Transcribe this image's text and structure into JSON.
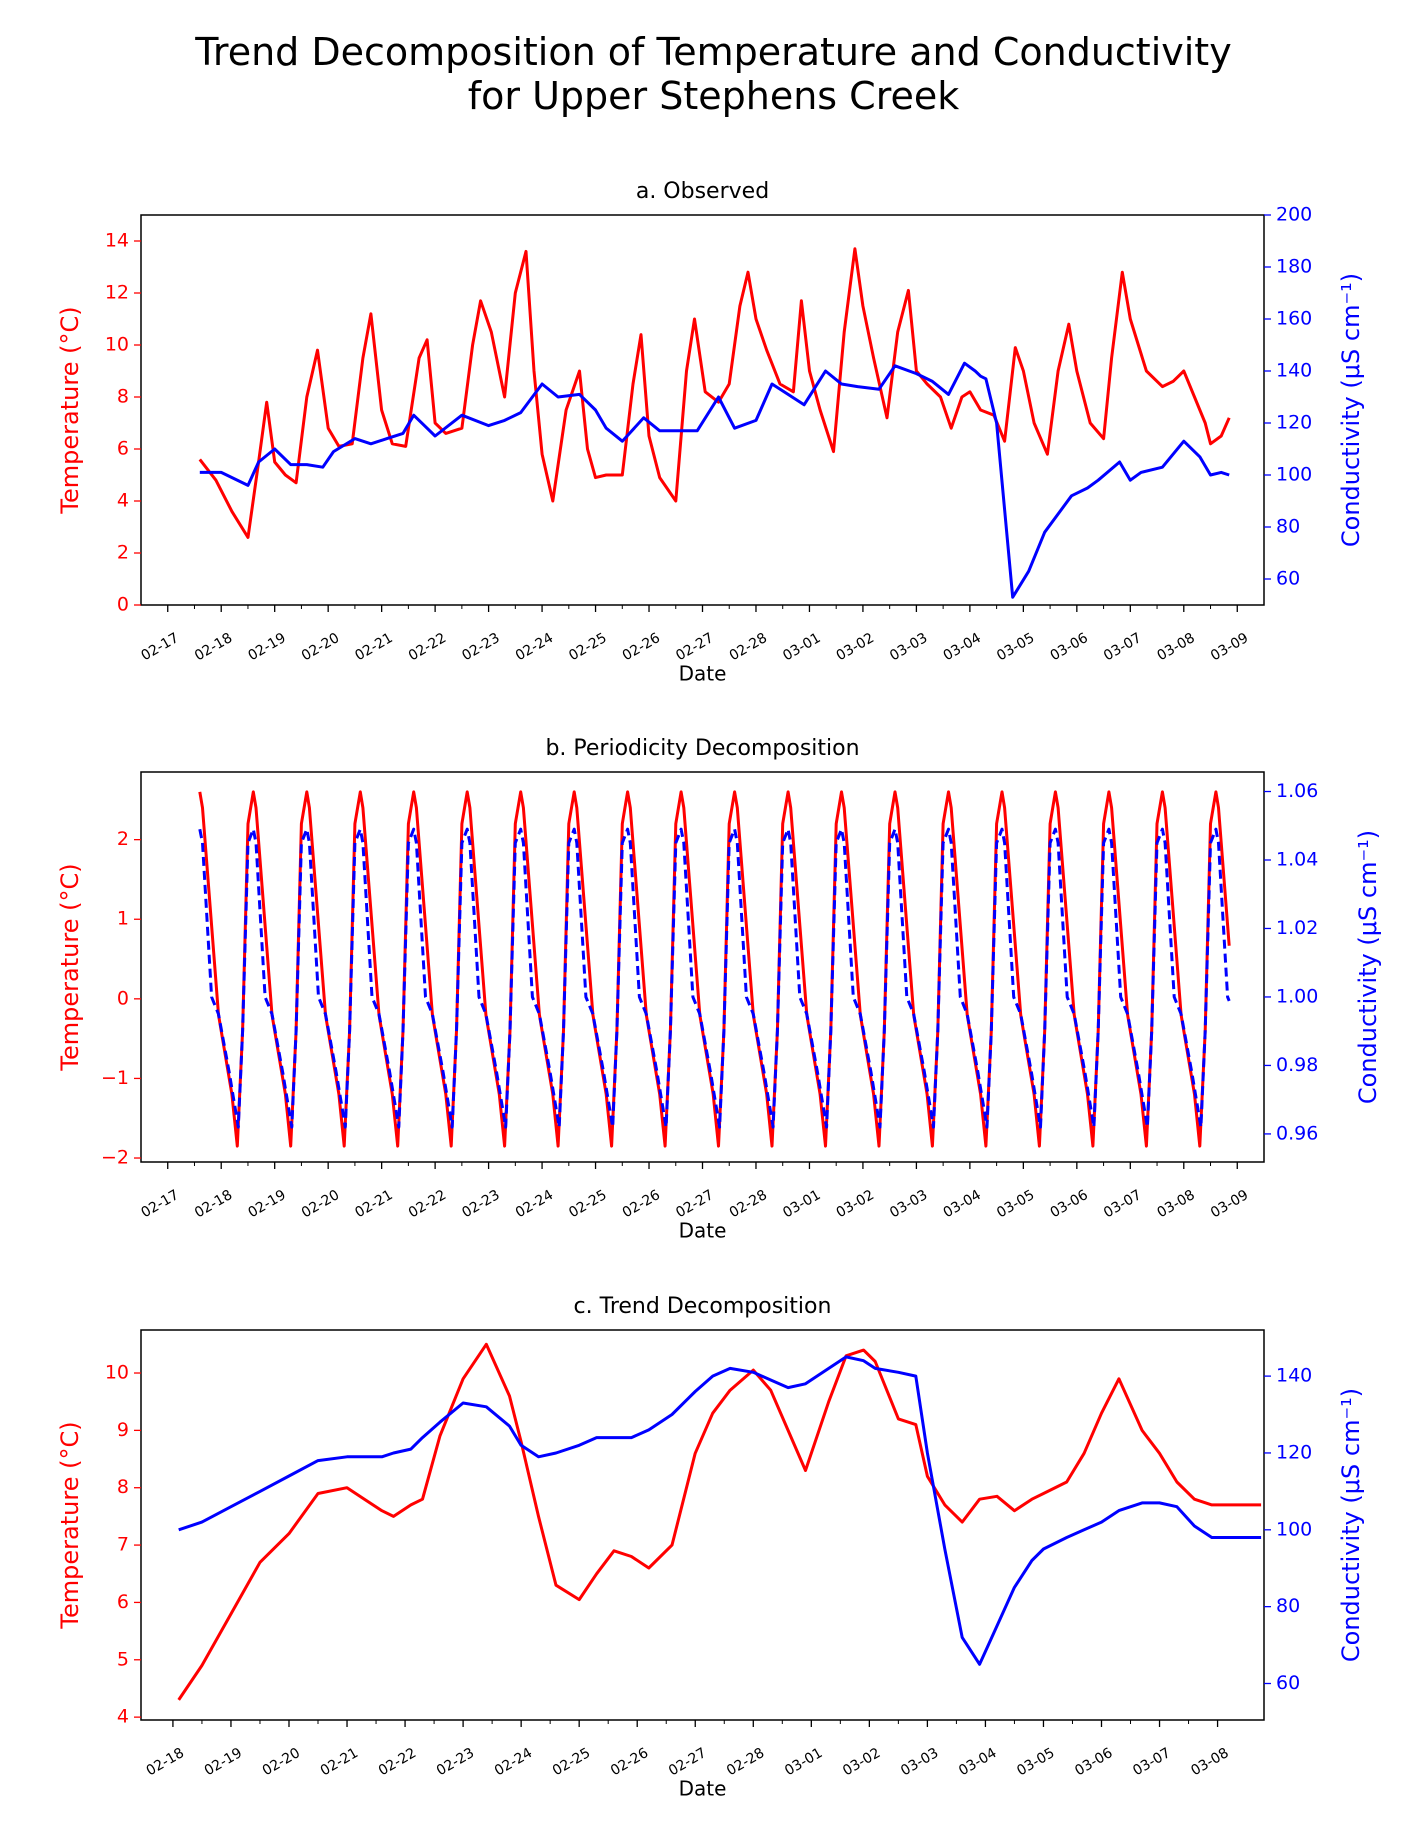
{
  "figure": {
    "title_line1": "Trend Decomposition of Temperature and Conductivity",
    "title_line2": "for Upper Stephens Creek"
  },
  "colors": {
    "temperature": "#ff0000",
    "conductivity": "#0000ff",
    "axes": "#000000"
  },
  "chart_data": [
    {
      "type": "line",
      "title": "a. Observed",
      "xlabel": "Date",
      "ylabel_left": "Temperature (°C)",
      "ylabel_right": "Conductivity (μS cm⁻¹)",
      "x_ticks": [
        "02-17",
        "02-18",
        "02-19",
        "02-20",
        "02-21",
        "02-22",
        "02-23",
        "02-24",
        "02-25",
        "02-26",
        "02-27",
        "02-28",
        "03-01",
        "03-02",
        "03-03",
        "03-04",
        "03-05",
        "03-06",
        "03-07",
        "03-08",
        "03-09"
      ],
      "xlim": [
        -0.5,
        20.5
      ],
      "y_left": {
        "lim": [
          0,
          15
        ],
        "ticks": [
          0,
          2,
          4,
          6,
          8,
          10,
          12,
          14
        ]
      },
      "y_right": {
        "lim": [
          50,
          200
        ],
        "ticks": [
          60,
          80,
          100,
          120,
          140,
          160,
          180,
          200
        ]
      },
      "series": [
        {
          "name": "Temperature",
          "axis": "left",
          "color": "#ff0000",
          "style": "solid",
          "x": [
            0.6,
            0.9,
            1.2,
            1.5,
            1.7,
            1.85,
            2.0,
            2.2,
            2.4,
            2.6,
            2.8,
            3.0,
            3.2,
            3.45,
            3.65,
            3.8,
            4.0,
            4.2,
            4.45,
            4.7,
            4.85,
            5.0,
            5.2,
            5.5,
            5.7,
            5.85,
            6.05,
            6.3,
            6.5,
            6.7,
            6.85,
            7.0,
            7.2,
            7.45,
            7.7,
            7.85,
            8.0,
            8.2,
            8.5,
            8.7,
            8.85,
            9.0,
            9.2,
            9.5,
            9.7,
            9.85,
            10.05,
            10.3,
            10.5,
            10.7,
            10.85,
            11.0,
            11.2,
            11.45,
            11.7,
            11.85,
            12.0,
            12.2,
            12.45,
            12.65,
            12.85,
            13.0,
            13.2,
            13.45,
            13.65,
            13.85,
            14.0,
            14.2,
            14.45,
            14.65,
            14.85,
            15.0,
            15.2,
            15.45,
            15.65,
            15.85,
            16.0,
            16.2,
            16.45,
            16.65,
            16.85,
            17.0,
            17.25,
            17.5,
            17.65,
            17.85,
            18.0,
            18.3,
            18.6,
            18.8,
            19.0,
            19.2,
            19.4,
            19.5,
            19.7,
            19.85
          ],
          "y": [
            5.6,
            4.8,
            3.6,
            2.6,
            5.5,
            7.8,
            5.5,
            5.0,
            4.7,
            8.0,
            9.8,
            6.8,
            6.1,
            6.2,
            9.5,
            11.2,
            7.5,
            6.2,
            6.1,
            9.5,
            10.2,
            7.0,
            6.6,
            6.8,
            10.0,
            11.7,
            10.5,
            8.0,
            12.0,
            13.6,
            9.0,
            5.8,
            4.0,
            7.5,
            9.0,
            6.0,
            4.9,
            5.0,
            5.0,
            8.5,
            10.4,
            6.5,
            4.9,
            4.0,
            9.0,
            11.0,
            8.2,
            7.8,
            8.5,
            11.5,
            12.8,
            11.0,
            9.8,
            8.5,
            8.2,
            11.7,
            9.0,
            7.5,
            5.9,
            10.5,
            13.7,
            11.5,
            9.5,
            7.2,
            10.5,
            12.1,
            9.0,
            8.5,
            8.0,
            6.8,
            8.0,
            8.2,
            7.5,
            7.3,
            6.3,
            9.9,
            9.0,
            7.0,
            5.8,
            9.0,
            10.8,
            9.0,
            7.0,
            6.4,
            9.5,
            12.8,
            11.0,
            9.0,
            8.4,
            8.6,
            9.0,
            8.0,
            7.0,
            6.2,
            6.5,
            7.2
          ]
        },
        {
          "name": "Conductivity",
          "axis": "right",
          "color": "#0000ff",
          "style": "solid",
          "x": [
            0.6,
            1.0,
            1.5,
            1.7,
            2.0,
            2.3,
            2.6,
            2.9,
            3.1,
            3.5,
            3.8,
            4.1,
            4.4,
            4.6,
            4.8,
            5.0,
            5.5,
            6.0,
            6.3,
            6.6,
            7.0,
            7.3,
            7.7,
            8.0,
            8.2,
            8.5,
            8.9,
            9.2,
            9.5,
            9.9,
            10.3,
            10.6,
            11.0,
            11.3,
            11.6,
            11.9,
            12.3,
            12.6,
            12.9,
            13.3,
            13.6,
            14.0,
            14.3,
            14.6,
            14.9,
            15.1,
            15.2,
            15.3,
            15.5,
            15.8,
            16.1,
            16.4,
            16.9,
            17.2,
            17.4,
            17.8,
            18.0,
            18.2,
            18.6,
            19.0,
            19.3,
            19.5,
            19.7,
            19.85
          ],
          "y": [
            101,
            101,
            96,
            105,
            110,
            104,
            104,
            103,
            109,
            114,
            112,
            114,
            116,
            123,
            119,
            115,
            123,
            119,
            121,
            124,
            135,
            130,
            131,
            125,
            118,
            113,
            122,
            117,
            117,
            117,
            130,
            118,
            121,
            135,
            131,
            127,
            140,
            135,
            134,
            133,
            142,
            139,
            136,
            131,
            143,
            140,
            138,
            137,
            120,
            53,
            63,
            78,
            92,
            95,
            98,
            105,
            98,
            101,
            103,
            113,
            107,
            100,
            101,
            100
          ]
        }
      ]
    },
    {
      "type": "line",
      "title": "b. Periodicity Decomposition",
      "xlabel": "Date",
      "ylabel_left": "Temperature (°C)",
      "ylabel_right": "Conductivity (μS cm⁻¹)",
      "x_ticks": [
        "02-17",
        "02-18",
        "02-19",
        "02-20",
        "02-21",
        "02-22",
        "02-23",
        "02-24",
        "02-25",
        "02-26",
        "02-27",
        "02-28",
        "03-01",
        "03-02",
        "03-03",
        "03-04",
        "03-05",
        "03-06",
        "03-07",
        "03-08",
        "03-09"
      ],
      "xlim": [
        -0.5,
        20.5
      ],
      "y_left": {
        "lim": [
          -2.05,
          2.85
        ],
        "ticks": [
          -2,
          -1,
          0,
          1,
          2
        ]
      },
      "y_right": {
        "lim": [
          0.9518,
          1.0657
        ],
        "ticks": [
          0.96,
          0.98,
          1.0,
          1.02,
          1.04,
          1.06
        ]
      },
      "series": [
        {
          "name": "Temperature",
          "axis": "left",
          "color": "#ff0000",
          "style": "solid",
          "period_days": 1,
          "day_start": 0.6,
          "day_end": 19.85,
          "cycle_count": 20,
          "cycle_shape": {
            "phase": [
              0.0,
              0.05,
              0.35,
              0.6,
              0.7,
              0.8,
              0.9,
              1.0
            ],
            "value": [
              2.6,
              2.4,
              -0.2,
              -1.2,
              -1.85,
              -0.4,
              2.2,
              2.6
            ]
          }
        },
        {
          "name": "Conductivity",
          "axis": "right",
          "color": "#0000ff",
          "style": "dashed",
          "period_days": 1,
          "day_start": 0.6,
          "day_end": 19.85,
          "cycle_count": 20,
          "cycle_shape": {
            "phase": [
              0.0,
              0.05,
              0.22,
              0.35,
              0.55,
              0.72,
              0.8,
              0.9,
              1.0
            ],
            "value": [
              1.049,
              1.045,
              1.0,
              0.995,
              0.978,
              0.962,
              0.99,
              1.045,
              1.049
            ]
          }
        }
      ]
    },
    {
      "type": "line",
      "title": "c. Trend Decomposition",
      "xlabel": "Date",
      "ylabel_left": "Temperature (°C)",
      "ylabel_right": "Conductivity (μS cm⁻¹)",
      "x_ticks": [
        "02-18",
        "02-19",
        "02-20",
        "02-21",
        "02-22",
        "02-23",
        "02-24",
        "02-25",
        "02-26",
        "02-27",
        "02-28",
        "03-01",
        "03-02",
        "03-03",
        "03-04",
        "03-05",
        "03-06",
        "03-07",
        "03-08"
      ],
      "xlim": [
        -0.55,
        18.8
      ],
      "y_left": {
        "lim": [
          3.95,
          10.75
        ],
        "ticks": [
          4,
          5,
          6,
          7,
          8,
          9,
          10
        ]
      },
      "y_right": {
        "lim": [
          50.5,
          152
        ],
        "ticks": [
          60,
          80,
          100,
          120,
          140
        ]
      },
      "series": [
        {
          "name": "Temperature",
          "axis": "left",
          "color": "#ff0000",
          "style": "solid",
          "x": [
            0.1,
            0.5,
            1.0,
            1.5,
            2.0,
            2.5,
            3.0,
            3.3,
            3.6,
            3.8,
            4.1,
            4.3,
            4.6,
            5.0,
            5.4,
            5.8,
            6.0,
            6.3,
            6.6,
            7.0,
            7.3,
            7.6,
            7.9,
            8.2,
            8.6,
            9.0,
            9.3,
            9.6,
            10.0,
            10.3,
            10.6,
            10.9,
            11.3,
            11.6,
            11.9,
            12.1,
            12.5,
            12.8,
            13.0,
            13.3,
            13.6,
            13.9,
            14.2,
            14.5,
            14.8,
            15.0,
            15.4,
            15.7,
            16.0,
            16.3,
            16.7,
            17.0,
            17.3,
            17.6,
            17.9,
            18.2,
            18.4,
            18.6,
            18.75
          ],
          "y": [
            4.3,
            4.9,
            5.8,
            6.7,
            7.2,
            7.9,
            8.0,
            7.8,
            7.6,
            7.5,
            7.7,
            7.8,
            8.9,
            9.9,
            10.5,
            9.6,
            8.8,
            7.5,
            6.3,
            6.05,
            6.5,
            6.9,
            6.8,
            6.6,
            7.0,
            8.6,
            9.3,
            9.7,
            10.05,
            9.7,
            9.0,
            8.3,
            9.5,
            10.3,
            10.4,
            10.2,
            9.2,
            9.1,
            8.2,
            7.7,
            7.4,
            7.8,
            7.85,
            7.6,
            7.8,
            7.9,
            8.1,
            8.6,
            9.3,
            9.9,
            9.0,
            8.6,
            8.1,
            7.8,
            7.7,
            7.7,
            7.7,
            7.7,
            7.7
          ]
        },
        {
          "name": "Conductivity",
          "axis": "right",
          "color": "#0000ff",
          "style": "solid",
          "x": [
            0.1,
            0.5,
            1.0,
            1.5,
            2.0,
            2.5,
            3.0,
            3.3,
            3.6,
            3.8,
            4.1,
            4.3,
            4.6,
            5.0,
            5.4,
            5.8,
            6.0,
            6.3,
            6.6,
            7.0,
            7.3,
            7.6,
            7.9,
            8.2,
            8.6,
            9.0,
            9.3,
            9.6,
            10.0,
            10.3,
            10.6,
            10.9,
            11.3,
            11.6,
            11.9,
            12.1,
            12.5,
            12.8,
            13.0,
            13.3,
            13.6,
            13.9,
            14.2,
            14.5,
            14.8,
            15.0,
            15.4,
            15.7,
            16.0,
            16.3,
            16.7,
            17.0,
            17.3,
            17.6,
            17.9,
            18.2,
            18.4,
            18.6,
            18.75
          ],
          "y": [
            100,
            102,
            106,
            110,
            114,
            118,
            119,
            119,
            119,
            120,
            121,
            124,
            128,
            133,
            132,
            127,
            122,
            119,
            120,
            122,
            124,
            124,
            124,
            126,
            130,
            136,
            140,
            142,
            141,
            139,
            137,
            138,
            142,
            145,
            144,
            142,
            141,
            140,
            120,
            95,
            72,
            65,
            75,
            85,
            92,
            95,
            98,
            100,
            102,
            105,
            107,
            107,
            106,
            101,
            98,
            98,
            98,
            98,
            98
          ]
        }
      ]
    }
  ]
}
